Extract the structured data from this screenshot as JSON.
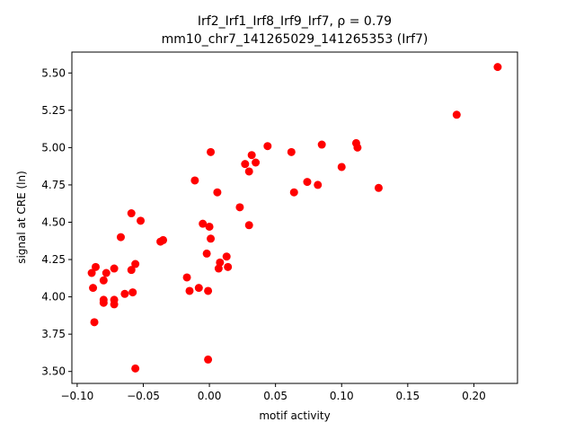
{
  "chart_data": {
    "type": "scatter",
    "title_line1": "Irf2_Irf1_Irf8_Irf9_Irf7, ρ = 0.79",
    "title_line2": "mm10_chr7_141265029_141265353 (Irf7)",
    "xlabel": "motif activity",
    "ylabel": "signal at CRE (ln)",
    "xlim": [
      -0.104,
      0.233
    ],
    "ylim": [
      3.42,
      5.64
    ],
    "xticks": [
      -0.1,
      -0.05,
      0.0,
      0.05,
      0.1,
      0.15,
      0.2
    ],
    "xtick_labels": [
      "−0.10",
      "−0.05",
      "0.00",
      "0.05",
      "0.10",
      "0.15",
      "0.20"
    ],
    "yticks": [
      3.5,
      3.75,
      4.0,
      4.25,
      4.5,
      4.75,
      5.0,
      5.25,
      5.5
    ],
    "ytick_labels": [
      "3.50",
      "3.75",
      "4.00",
      "4.25",
      "4.50",
      "4.75",
      "5.00",
      "5.25",
      "5.50"
    ],
    "marker_color": "#ff0000",
    "grid": false,
    "points": [
      {
        "x": -0.089,
        "y": 4.16
      },
      {
        "x": -0.086,
        "y": 4.2
      },
      {
        "x": -0.088,
        "y": 4.06
      },
      {
        "x": -0.087,
        "y": 3.83
      },
      {
        "x": -0.08,
        "y": 4.11
      },
      {
        "x": -0.078,
        "y": 4.16
      },
      {
        "x": -0.08,
        "y": 3.98
      },
      {
        "x": -0.08,
        "y": 3.96
      },
      {
        "x": -0.072,
        "y": 4.19
      },
      {
        "x": -0.072,
        "y": 3.98
      },
      {
        "x": -0.072,
        "y": 3.95
      },
      {
        "x": -0.067,
        "y": 4.4
      },
      {
        "x": -0.064,
        "y": 4.02
      },
      {
        "x": -0.059,
        "y": 4.56
      },
      {
        "x": -0.059,
        "y": 4.18
      },
      {
        "x": -0.058,
        "y": 4.03
      },
      {
        "x": -0.056,
        "y": 4.22
      },
      {
        "x": -0.056,
        "y": 3.52
      },
      {
        "x": -0.052,
        "y": 4.51
      },
      {
        "x": -0.037,
        "y": 4.37
      },
      {
        "x": -0.035,
        "y": 4.38
      },
      {
        "x": -0.017,
        "y": 4.13
      },
      {
        "x": -0.015,
        "y": 4.04
      },
      {
        "x": -0.011,
        "y": 4.78
      },
      {
        "x": -0.008,
        "y": 4.06
      },
      {
        "x": -0.005,
        "y": 4.49
      },
      {
        "x": -0.002,
        "y": 4.29
      },
      {
        "x": -0.001,
        "y": 4.04
      },
      {
        "x": -0.001,
        "y": 3.58
      },
      {
        "x": 0.0,
        "y": 4.47
      },
      {
        "x": 0.001,
        "y": 4.97
      },
      {
        "x": 0.001,
        "y": 4.39
      },
      {
        "x": 0.006,
        "y": 4.7
      },
      {
        "x": 0.007,
        "y": 4.19
      },
      {
        "x": 0.008,
        "y": 4.23
      },
      {
        "x": 0.013,
        "y": 4.27
      },
      {
        "x": 0.014,
        "y": 4.2
      },
      {
        "x": 0.023,
        "y": 4.6
      },
      {
        "x": 0.027,
        "y": 4.89
      },
      {
        "x": 0.03,
        "y": 4.84
      },
      {
        "x": 0.03,
        "y": 4.48
      },
      {
        "x": 0.032,
        "y": 4.95
      },
      {
        "x": 0.035,
        "y": 4.9
      },
      {
        "x": 0.044,
        "y": 5.01
      },
      {
        "x": 0.062,
        "y": 4.97
      },
      {
        "x": 0.064,
        "y": 4.7
      },
      {
        "x": 0.074,
        "y": 4.77
      },
      {
        "x": 0.082,
        "y": 4.75
      },
      {
        "x": 0.085,
        "y": 5.02
      },
      {
        "x": 0.1,
        "y": 4.87
      },
      {
        "x": 0.111,
        "y": 5.03
      },
      {
        "x": 0.112,
        "y": 5.0
      },
      {
        "x": 0.128,
        "y": 4.73
      },
      {
        "x": 0.187,
        "y": 5.22
      },
      {
        "x": 0.218,
        "y": 5.54
      }
    ]
  }
}
